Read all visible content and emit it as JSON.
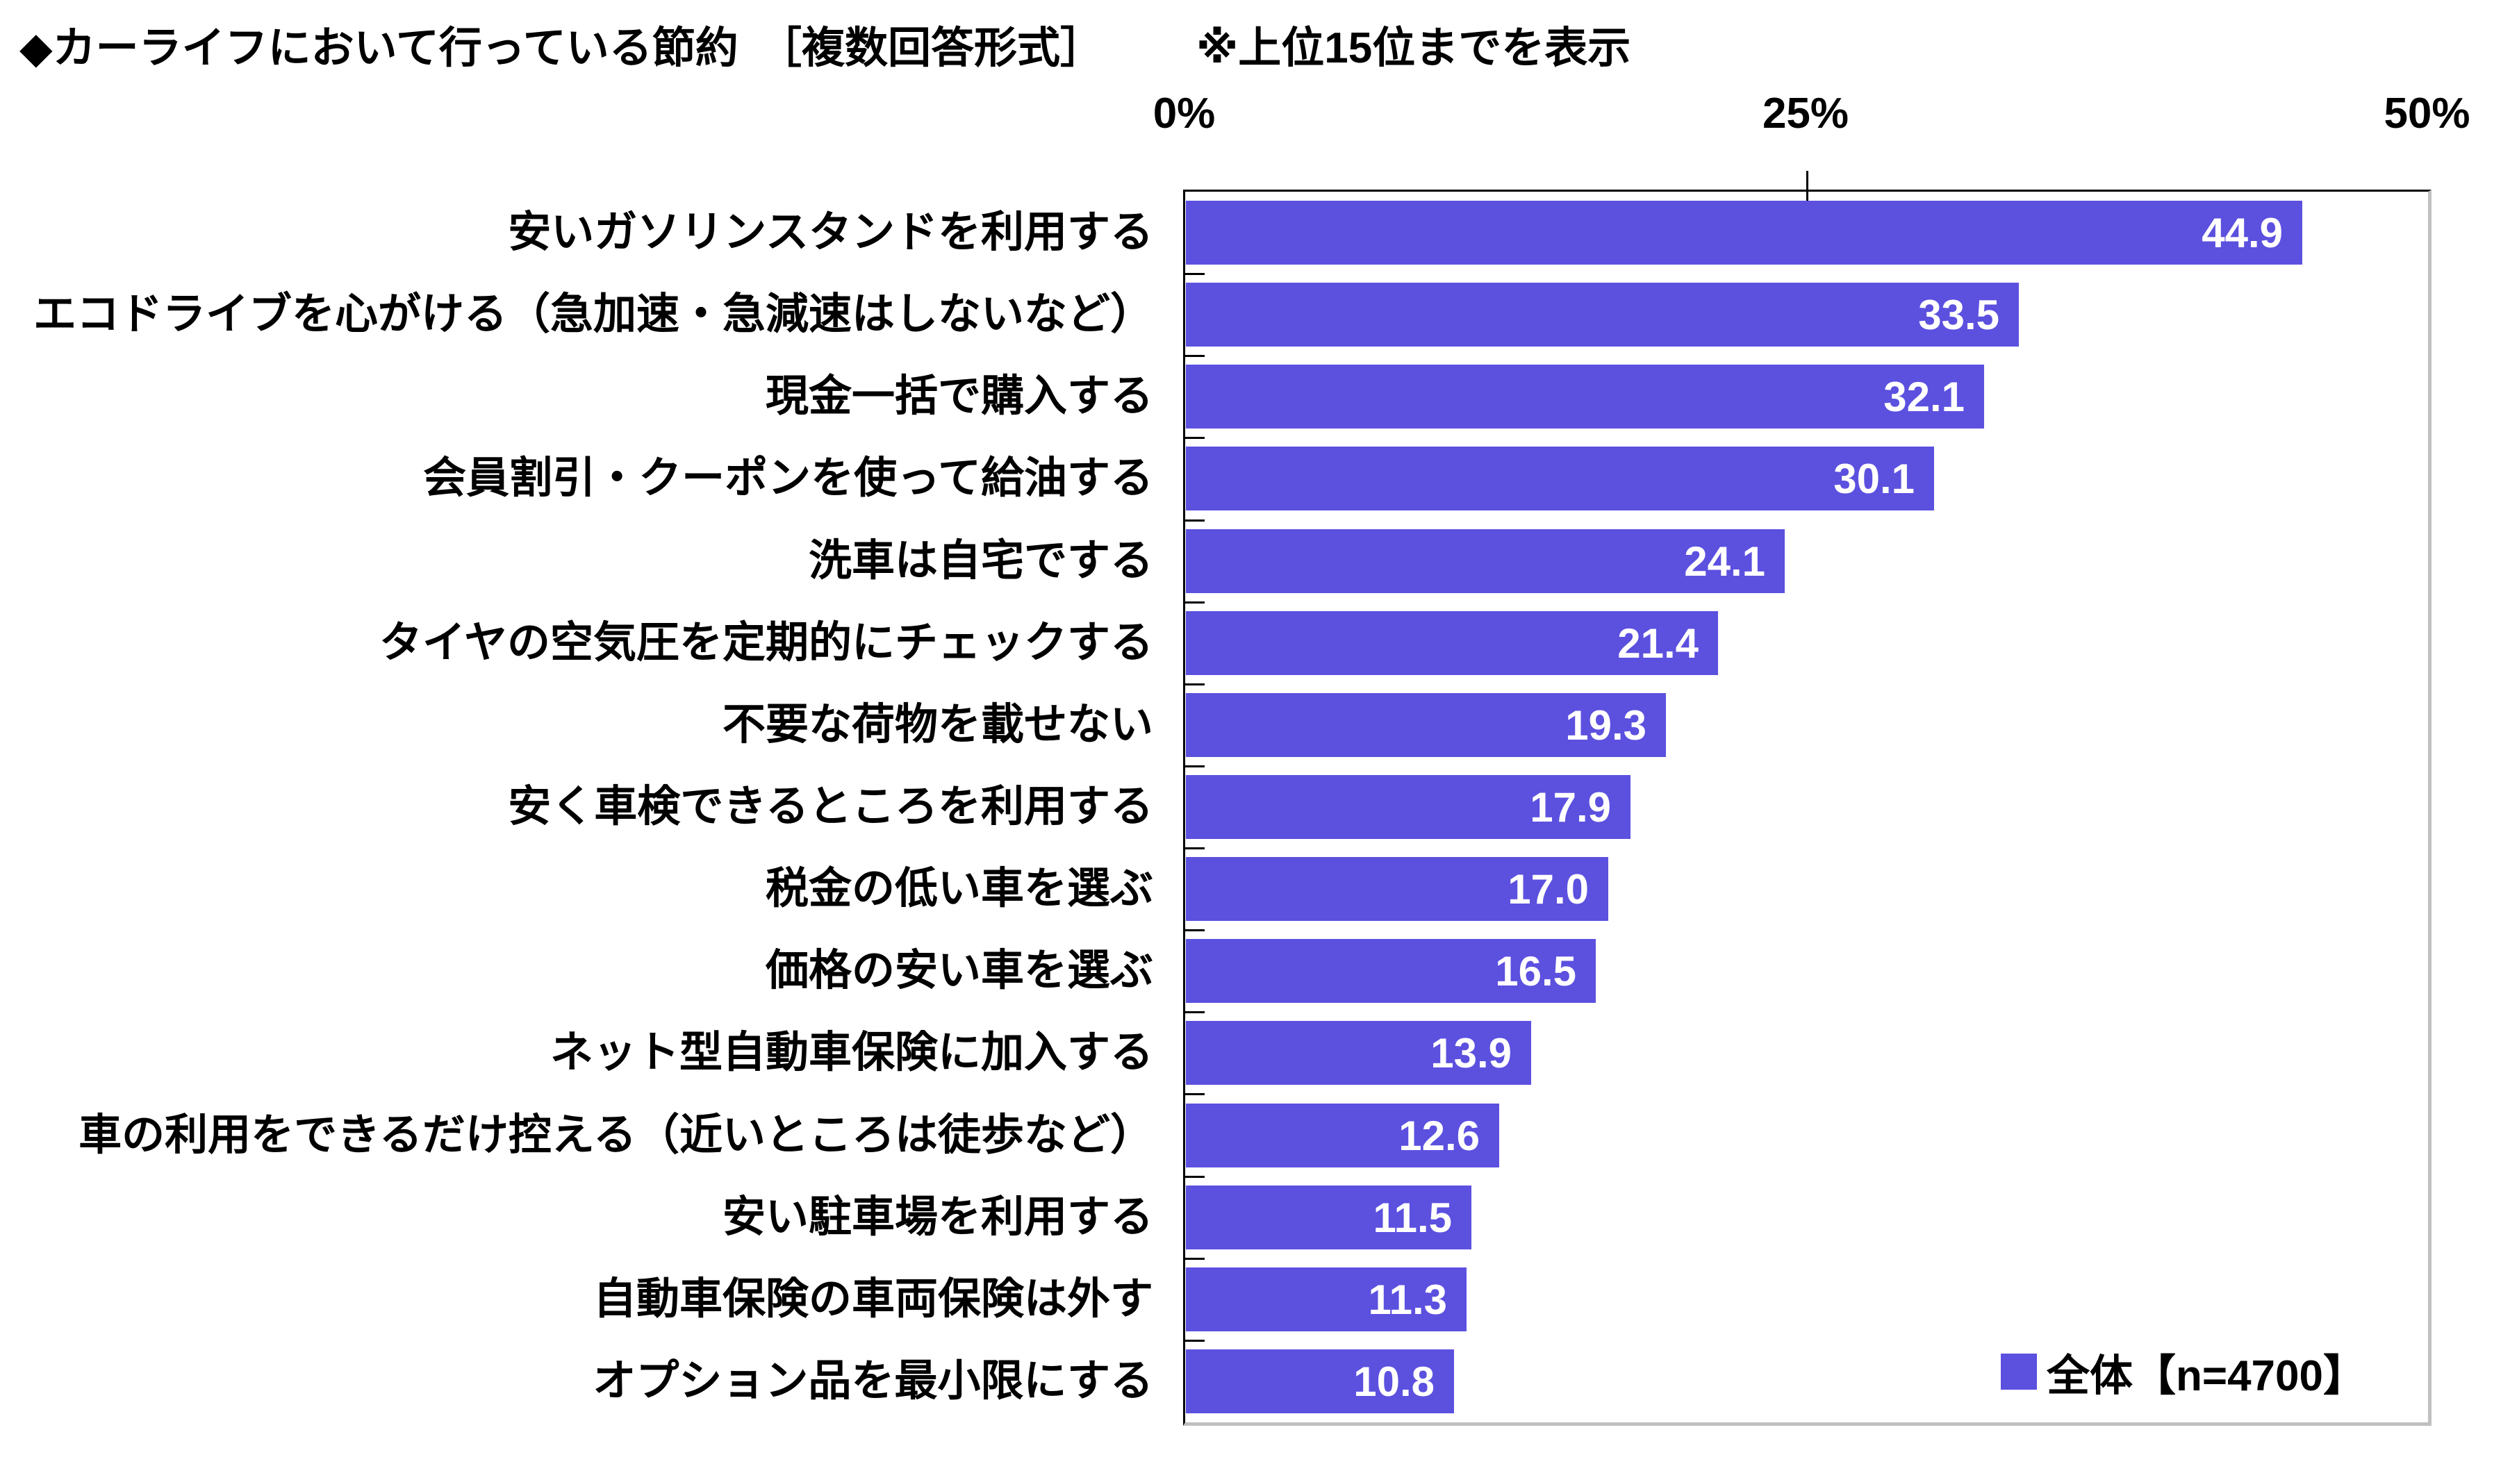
{
  "title": {
    "main": "◆カーライフにおいて行っている節約",
    "format_note": "［複数回答形式］",
    "display_note": "※上位15位までを表示"
  },
  "x_axis": {
    "tick_labels": [
      "0%",
      "25%",
      "50%"
    ]
  },
  "legend": {
    "label": "全体【n=4700】"
  },
  "colors": {
    "bar": "#5C50DF",
    "value_label": "#FFFFFF",
    "frame_dark": "#000000",
    "frame_shadow": "#C0C0C0"
  },
  "chart_data": {
    "type": "bar",
    "orientation": "horizontal",
    "title": "カーライフにおいて行っている節約［複数回答形式］※上位15位までを表示",
    "categories": [
      "安いガソリンスタンドを利用する",
      "エコドライブを心がける（急加速・急減速はしないなど）",
      "現金一括で購入する",
      "会員割引・クーポンを使って給油する",
      "洗車は自宅でする",
      "タイヤの空気圧を定期的にチェックする",
      "不要な荷物を載せない",
      "安く車検できるところを利用する",
      "税金の低い車を選ぶ",
      "価格の安い車を選ぶ",
      "ネット型自動車保険に加入する",
      "車の利用をできるだけ控える（近いところは徒歩など）",
      "安い駐車場を利用する",
      "自動車保険の車両保険は外す",
      "オプション品を最小限にする"
    ],
    "values": [
      44.9,
      33.5,
      32.1,
      30.1,
      24.1,
      21.4,
      19.3,
      17.9,
      17.0,
      16.5,
      13.9,
      12.6,
      11.5,
      11.3,
      10.8
    ],
    "value_labels": [
      "44.9",
      "33.5",
      "32.1",
      "30.1",
      "24.1",
      "21.4",
      "19.3",
      "17.9",
      "17.0",
      "16.5",
      "13.9",
      "12.6",
      "11.5",
      "11.3",
      "10.8"
    ],
    "series": [
      {
        "name": "全体【n=4700】",
        "values": [
          44.9,
          33.5,
          32.1,
          30.1,
          24.1,
          21.4,
          19.3,
          17.9,
          17.0,
          16.5,
          13.9,
          12.6,
          11.5,
          11.3,
          10.8
        ]
      }
    ],
    "xlabel": "",
    "ylabel": "",
    "xlim": [
      0,
      50
    ],
    "x_ticks": [
      0,
      25,
      50
    ],
    "grid": false,
    "legend_position": "inside-bottom-right",
    "value_labels_position": "inside-end"
  }
}
